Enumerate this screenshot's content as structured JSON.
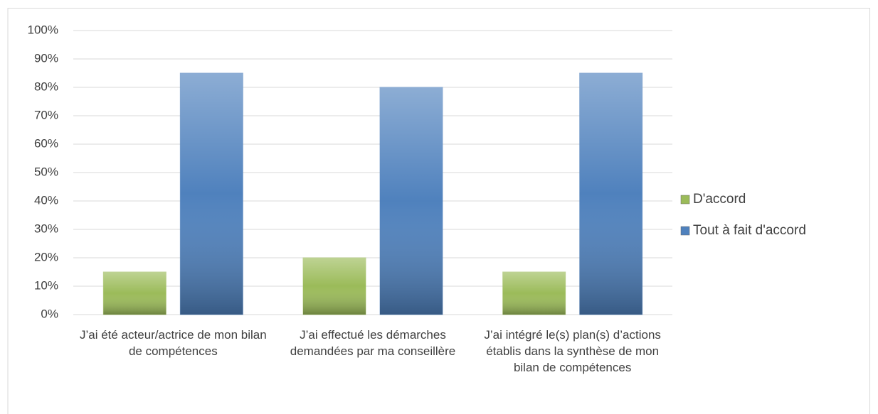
{
  "chart_data": {
    "type": "bar",
    "categories": [
      "J’ai été acteur/actrice de mon bilan de compétences",
      "J’ai effectué les démarches demandées par ma conseillère",
      "J’ai intégré le(s) plan(s) d’actions établis dans la synthèse de mon bilan de compétences"
    ],
    "series": [
      {
        "name": "D'accord",
        "color": "#9bbb59",
        "values": [
          15,
          20,
          15
        ]
      },
      {
        "name": "Tout à fait d'accord",
        "color": "#4f81bd",
        "values": [
          85,
          80,
          85
        ]
      }
    ],
    "ylim": [
      0,
      100
    ],
    "yticks": [
      {
        "value": 0,
        "label": "0%"
      },
      {
        "value": 10,
        "label": "10%"
      },
      {
        "value": 20,
        "label": "20%"
      },
      {
        "value": 30,
        "label": "30%"
      },
      {
        "value": 40,
        "label": "40%"
      },
      {
        "value": 50,
        "label": "50%"
      },
      {
        "value": 60,
        "label": "60%"
      },
      {
        "value": 70,
        "label": "70%"
      },
      {
        "value": 80,
        "label": "80%"
      },
      {
        "value": 90,
        "label": "90%"
      },
      {
        "value": 100,
        "label": "100%"
      }
    ],
    "grid": true,
    "legend": "right"
  }
}
